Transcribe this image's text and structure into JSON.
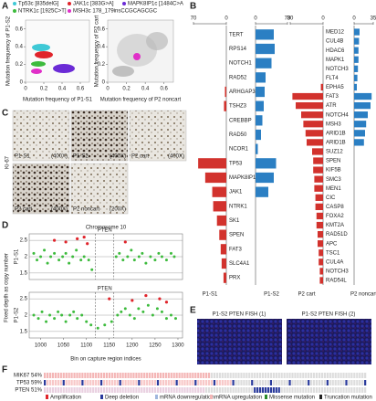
{
  "panel_a": {
    "label": "A",
    "legend": [
      {
        "text": "Tp53c [835delG]",
        "color": "#3fc9d6"
      },
      {
        "text": "JAK1c [383G>A]",
        "color": "#e0242b"
      },
      {
        "text": "MAPK8IP1c [1484C>A",
        "color": "#6b2bd6"
      },
      {
        "text": "NTRK1c [1925C>T]",
        "color": "#3dbb3d"
      },
      {
        "text": "MSH3c 178_179insCCGCAGCGC",
        "color": "#e02fc8"
      }
    ],
    "left": {
      "xlabel": "Mutation frequency of P1-S1",
      "ylabel": "Mutation frequency of P1-S2"
    },
    "right": {
      "xlabel": "Mutation frequency of P2 noncart",
      "ylabel": "Mutation frequency of P2 cart"
    },
    "xlim": [
      0,
      0.7
    ],
    "xticks": [
      0,
      0.2,
      0.4,
      0.6
    ],
    "ylim": [
      0,
      0.7
    ],
    "yticks": [
      0,
      0.2,
      0.4,
      0.6
    ]
  },
  "panel_b": {
    "label": "B",
    "left": {
      "genes": [
        "TERT",
        "RPS14",
        "NOTCH1",
        "RAD52",
        "ARHGAP35",
        "TSHZ3",
        "CREBBP",
        "RAD50",
        "NCOR1",
        "TP53",
        "MAPK8IP1",
        "JAK1",
        "NTRK1",
        "SK1",
        "SPEN",
        "FAT3",
        "SLC4A1",
        "PRX"
      ],
      "series": [
        {
          "name": "P1-S1",
          "color": "#d2322d",
          "values": [
            0,
            0,
            0,
            0,
            3,
            5,
            0,
            0,
            0,
            60,
            45,
            30,
            28,
            20,
            15,
            12,
            10,
            6
          ]
        },
        {
          "name": "P1-S2",
          "color": "#2b7fc3",
          "values": [
            40,
            42,
            35,
            22,
            20,
            18,
            15,
            12,
            5,
            45,
            40,
            28,
            0,
            0,
            0,
            0,
            0,
            0
          ]
        }
      ],
      "xlim": [
        0,
        70
      ],
      "xticks": [
        0,
        70
      ]
    },
    "right": {
      "genes": [
        "MED12",
        "CUL4B",
        "HDAC6",
        "MAPK1",
        "NOTCH3",
        "FLT4",
        "EPHA5",
        "FAT3",
        "ATR",
        "NOTCH4",
        "MSH3",
        "ARID1B",
        "ARID1B",
        "SUZ12",
        "SPEN",
        "KIF5B",
        "SMC3",
        "MEN1",
        "CIC",
        "CASP8",
        "FOXA2",
        "KMT2A",
        "RAD51D",
        "APC",
        "TSC1",
        "CUL4A",
        "NOTCH3",
        "RAD54L"
      ],
      "series": [
        {
          "name": "P2 cart",
          "color": "#d2322d",
          "values": [
            0,
            0,
            0,
            0,
            0,
            0,
            2,
            28,
            25,
            20,
            18,
            16,
            15,
            10,
            9,
            9,
            8,
            8,
            7,
            7,
            6,
            6,
            5,
            5,
            4,
            4,
            3,
            3
          ]
        },
        {
          "name": "P2 noncart",
          "color": "#2b7fc3",
          "values": [
            10,
            9,
            8,
            8,
            7,
            6,
            5,
            32,
            30,
            25,
            22,
            20,
            18,
            0,
            0,
            0,
            0,
            0,
            0,
            0,
            0,
            0,
            0,
            0,
            0,
            0,
            0,
            0
          ]
        }
      ],
      "xlim_cart": [
        0,
        30
      ],
      "xticks_cart": [
        0,
        30
      ],
      "xlim_noncart": [
        0,
        35
      ],
      "xticks_noncart": [
        0,
        35
      ]
    }
  },
  "panel_c": {
    "label": "C",
    "ylabel": "Ki-67",
    "images": [
      {
        "name": "P1-S1",
        "mag": "(400X)"
      },
      {
        "name": "P1-S2",
        "mag": "(400X)"
      },
      {
        "name": "P2 cart",
        "mag": "(400X)"
      },
      {
        "name": "P2 cart",
        "mag": "(400X)"
      },
      {
        "name": "P2 noncart",
        "mag": "(200X)"
      }
    ]
  },
  "panel_d": {
    "label": "D",
    "title": "Chromosome 10",
    "gene": "PTEN",
    "ylabel": "Fixed depth as copy number",
    "xlabel": "Bin on capture region indices",
    "xlim": [
      975,
      1310
    ],
    "xticks": [
      1000,
      1050,
      1100,
      1150,
      1200,
      1250,
      1300
    ],
    "ylim": [
      1.3,
      2.7
    ],
    "yticks": [
      1.5,
      2,
      2.5
    ],
    "pten_region": [
      1120,
      1160
    ],
    "plots": [
      {
        "name": "P1-S1",
        "x": [
          985,
          992,
          1000,
          1008,
          1015,
          1022,
          1030,
          1040,
          1048,
          1055,
          1062,
          1070,
          1078,
          1088,
          1095,
          1105,
          1112,
          1165,
          1172,
          1180,
          1190,
          1198,
          1205,
          1215,
          1222,
          1230,
          1240,
          1250,
          1258,
          1265,
          1275,
          1285,
          1292
        ],
        "y": [
          2.1,
          1.9,
          2.0,
          2.2,
          1.8,
          2.0,
          2.1,
          1.9,
          2.0,
          2.1,
          1.8,
          2.0,
          2.2,
          1.9,
          2.0,
          1.9,
          1.6,
          2.0,
          2.1,
          1.9,
          2.0,
          2.2,
          1.9,
          2.0,
          2.1,
          1.8,
          2.0,
          1.9,
          2.1,
          2.0,
          1.9,
          2.1,
          2.0
        ],
        "color": "#3dbb3d",
        "high_x": [
          1030,
          1055,
          1080,
          1095,
          1102,
          1185
        ],
        "high_y": [
          2.5,
          2.45,
          2.55,
          2.6,
          2.4,
          2.45
        ],
        "high_color": "#e0242b"
      },
      {
        "name": "P1-S2",
        "x": [
          985,
          995,
          1003,
          1012,
          1020,
          1030,
          1038,
          1046,
          1055,
          1064,
          1072,
          1080,
          1090,
          1100,
          1110,
          1125,
          1140,
          1155,
          1168,
          1176,
          1185,
          1195,
          1205,
          1214,
          1224,
          1235,
          1245,
          1255,
          1265,
          1275,
          1285,
          1295
        ],
        "y": [
          2.0,
          1.9,
          2.1,
          1.8,
          2.0,
          1.9,
          2.1,
          2.0,
          1.8,
          2.0,
          2.1,
          1.9,
          2.0,
          1.8,
          1.7,
          1.6,
          1.7,
          1.8,
          2.0,
          2.1,
          2.2,
          2.0,
          1.9,
          2.2,
          2.1,
          2.3,
          2.0,
          2.2,
          2.1,
          1.9,
          2.0,
          1.9
        ],
        "color": "#3dbb3d",
        "high_x": [
          1150,
          1200,
          1230,
          1260,
          1275
        ],
        "high_y": [
          2.5,
          2.45,
          2.6,
          2.5,
          2.4
        ],
        "high_color": "#e0242b"
      }
    ]
  },
  "panel_e": {
    "label": "E",
    "images": [
      "P1-S2 PTEN FISH (1)",
      "P1-S2 PTEN FISH (2)"
    ]
  },
  "panel_f": {
    "label": "F",
    "rows": [
      "MIK67 54%",
      "TP53 59%",
      "PTEN 51%"
    ],
    "legend": [
      "Amplification",
      "Deep deletion",
      "mRNA downregulation",
      "mRNA upregulation",
      "Missense mutation",
      "Truncation mutation"
    ]
  }
}
